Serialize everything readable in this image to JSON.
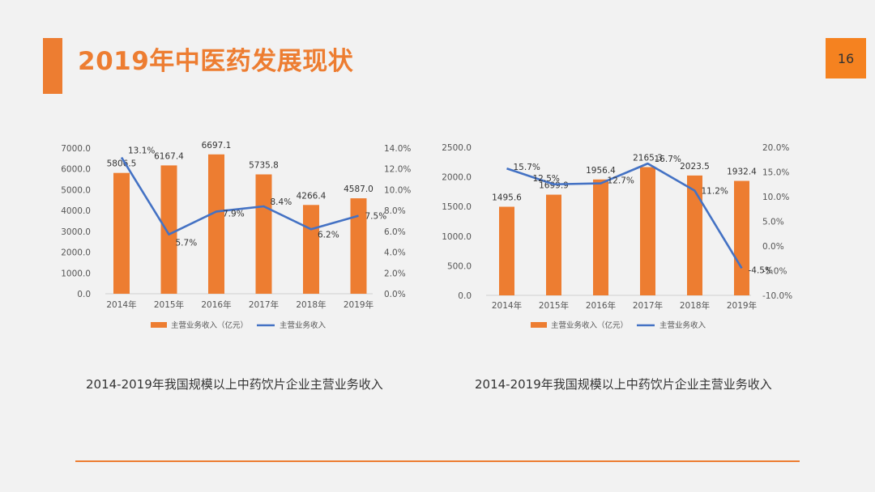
{
  "page": {
    "title": "2019年中医药发展现状",
    "page_number": "16",
    "accent_color": "#ED7D31"
  },
  "chart_data": [
    {
      "type": "bar",
      "title": "",
      "caption": "2014-2019年我国规模以上中药饮片企业主营业务收入",
      "categories": [
        "2014年",
        "2015年",
        "2016年",
        "2017年",
        "2018年",
        "2019年"
      ],
      "series": [
        {
          "name": "主营业务收入（亿元）",
          "type": "bar",
          "axis": "left",
          "color": "#ED7D31",
          "values": [
            5806.5,
            6167.4,
            6697.1,
            5735.8,
            4266.4,
            4587.0
          ]
        },
        {
          "name": "主营业务收入",
          "type": "line",
          "axis": "right",
          "color": "#4472C4",
          "values": [
            13.1,
            5.7,
            7.9,
            8.4,
            6.2,
            7.5
          ]
        }
      ],
      "left_axis": {
        "min": 0,
        "max": 7000,
        "step": 1000,
        "ticks": [
          "0.0",
          "1000.0",
          "2000.0",
          "3000.0",
          "4000.0",
          "5000.0",
          "6000.0",
          "7000.0"
        ]
      },
      "right_axis": {
        "min": 0,
        "max": 14,
        "step": 2,
        "ticks": [
          "0.0%",
          "2.0%",
          "4.0%",
          "6.0%",
          "8.0%",
          "10.0%",
          "12.0%",
          "14.0%"
        ]
      },
      "bar_labels": [
        "5806.5",
        "6167.4",
        "6697.1",
        "5735.8",
        "4266.4",
        "4587.0"
      ],
      "line_labels": [
        "13.1%",
        "5.7%",
        "7.9%",
        "8.4%",
        "6.2%",
        "7.5%"
      ],
      "legend": "bottom",
      "grid": false
    },
    {
      "type": "bar",
      "title": "",
      "caption": "2014-2019年我国规模以上中药饮片企业主营业务收入",
      "categories": [
        "2014年",
        "2015年",
        "2016年",
        "2017年",
        "2018年",
        "2019年"
      ],
      "series": [
        {
          "name": "主营业务收入（亿元）",
          "type": "bar",
          "axis": "left",
          "color": "#ED7D31",
          "values": [
            1495.6,
            1699.9,
            1956.4,
            2165.3,
            2023.5,
            1932.4
          ]
        },
        {
          "name": "主营业务收入",
          "type": "line",
          "axis": "right",
          "color": "#4472C4",
          "values": [
            15.7,
            12.5,
            12.7,
            16.7,
            11.2,
            -4.5
          ]
        }
      ],
      "left_axis": {
        "min": 0,
        "max": 2500,
        "step": 500,
        "ticks": [
          "0.0",
          "500.0",
          "1000.0",
          "1500.0",
          "2000.0",
          "2500.0"
        ]
      },
      "right_axis": {
        "min": -10,
        "max": 20,
        "step": 5,
        "ticks": [
          "-10.0%",
          "-5.0%",
          "0.0%",
          "5.0%",
          "10.0%",
          "15.0%",
          "20.0%"
        ]
      },
      "bar_labels": [
        "1495.6",
        "1699.9",
        "1956.4",
        "2165.3",
        "2023.5",
        "1932.4"
      ],
      "line_labels": [
        "15.7%",
        "12.5%",
        "12.7%",
        "16.7%",
        "11.2%",
        "-4.5%"
      ],
      "legend": "bottom",
      "grid": false
    }
  ]
}
